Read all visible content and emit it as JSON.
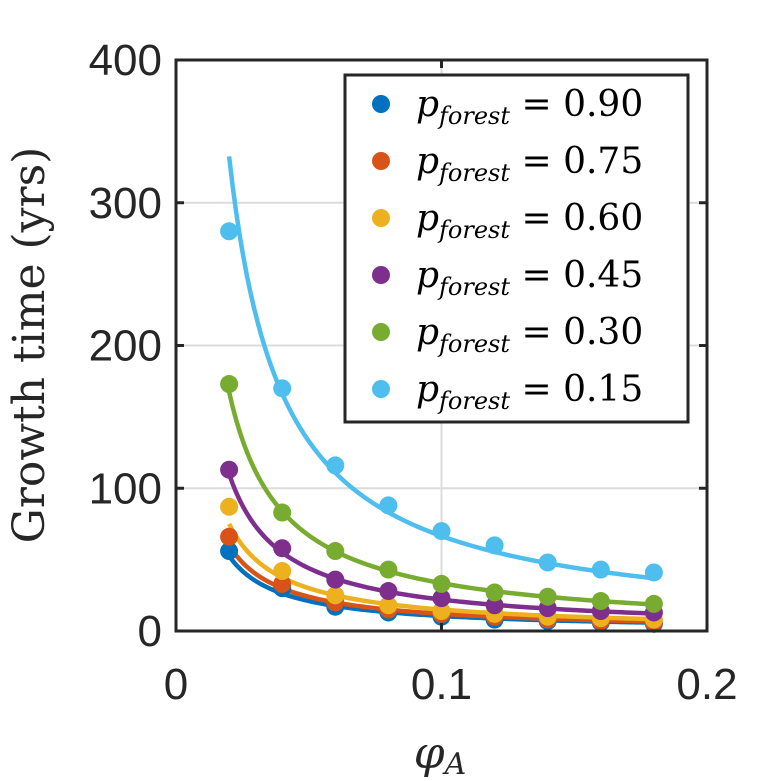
{
  "chart_data": {
    "type": "scatter",
    "title": "",
    "xlabel": "φ",
    "xlabel_sub": "A",
    "ylabel": "Growth time (yrs)",
    "xlim": [
      0,
      0.2
    ],
    "ylim": [
      0,
      400
    ],
    "xticks": [
      0,
      0.1,
      0.2
    ],
    "xtick_labels": [
      "0",
      "0.1",
      "0.2"
    ],
    "yticks": [
      0,
      100,
      200,
      300,
      400
    ],
    "ytick_labels": [
      "0",
      "100",
      "200",
      "300",
      "400"
    ],
    "grid": true,
    "legend_position": "top-right",
    "x": [
      0.02,
      0.04,
      0.06,
      0.08,
      0.1,
      0.12,
      0.14,
      0.16,
      0.18
    ],
    "fit_x_range": [
      0.02,
      0.18
    ],
    "series": [
      {
        "name": "p forest = 0.90",
        "legend_base": "p",
        "legend_sub": "forest",
        "legend_rest": " = 0.90",
        "color": "#0072BD",
        "values": [
          56,
          30,
          17,
          13,
          10,
          8,
          7,
          6,
          5
        ],
        "fit_coefficient": 1.05
      },
      {
        "name": "p forest = 0.75",
        "legend_base": "p",
        "legend_sub": "forest",
        "legend_rest": " = 0.75",
        "color": "#D95319",
        "values": [
          66,
          33,
          20,
          15,
          12,
          10,
          8,
          7,
          6
        ],
        "fit_coefficient": 1.2
      },
      {
        "name": "p forest = 0.60",
        "legend_base": "p",
        "legend_sub": "forest",
        "legend_rest": " = 0.60",
        "color": "#EDB120",
        "values": [
          87,
          42,
          25,
          18,
          14,
          12,
          10,
          9,
          8
        ],
        "fit_coefficient": 1.5
      },
      {
        "name": "p forest = 0.45",
        "legend_base": "p",
        "legend_sub": "forest",
        "legend_rest": " = 0.45",
        "color": "#7E2F8E",
        "values": [
          113,
          58,
          36,
          28,
          23,
          18,
          16,
          14,
          13
        ],
        "fit_coefficient": 2.2
      },
      {
        "name": "p forest = 0.30",
        "legend_base": "p",
        "legend_sub": "forest",
        "legend_rest": " = 0.30",
        "color": "#77AC30",
        "values": [
          173,
          83,
          56,
          43,
          33,
          27,
          24,
          21,
          19
        ],
        "fit_coefficient": 3.35
      },
      {
        "name": "p forest = 0.15",
        "legend_base": "p",
        "legend_sub": "forest",
        "legend_rest": " = 0.15",
        "color": "#4DBEEE",
        "values": [
          280,
          170,
          116,
          88,
          70,
          60,
          48,
          43,
          41
        ],
        "fit_coefficient": 6.65
      }
    ]
  }
}
